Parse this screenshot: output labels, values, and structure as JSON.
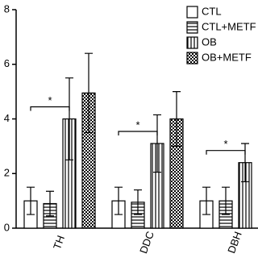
{
  "chart_data": {
    "type": "bar",
    "categories": [
      "TH",
      "DDC",
      "DBH"
    ],
    "series": [
      {
        "name": "CTL",
        "color": "#ffffff",
        "pattern": "none",
        "values": [
          1.0,
          1.0,
          1.0
        ],
        "errors": [
          0.5,
          0.5,
          0.5
        ]
      },
      {
        "name": "CTL+METF",
        "color": "#ffffff",
        "pattern": "horizontal",
        "values": [
          0.9,
          0.95,
          1.0
        ],
        "errors": [
          0.45,
          0.45,
          0.5
        ]
      },
      {
        "name": "OB",
        "color": "#ffffff",
        "pattern": "vertical",
        "values": [
          4.0,
          3.1,
          2.4
        ],
        "errors": [
          1.5,
          1.05,
          0.7
        ]
      },
      {
        "name": "OB+METF",
        "color": "#ffffff",
        "pattern": "checker",
        "values": [
          4.95,
          4.0,
          null
        ],
        "errors": [
          1.45,
          1.0,
          null
        ]
      }
    ],
    "annotations": [
      "*",
      "*",
      "*"
    ],
    "ylim": [
      0,
      8
    ],
    "yticks": [
      0,
      2,
      4,
      6,
      8
    ],
    "legend": "top-right"
  }
}
